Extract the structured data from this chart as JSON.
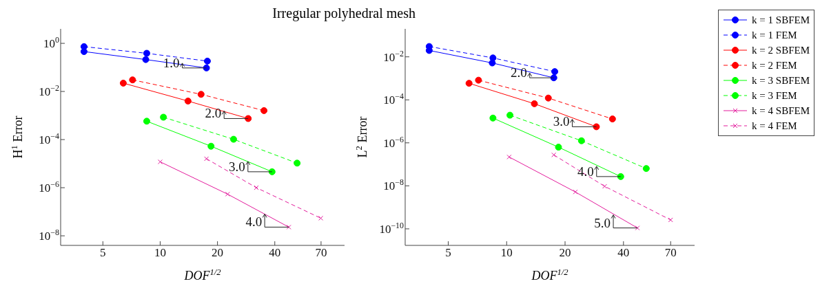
{
  "chart_data": [
    {
      "type": "line",
      "title": "Irregular polyhedral mesh",
      "xlabel": "DOF$^{1/2}$",
      "ylabel": "H$^{1}$ Error",
      "log": "xy",
      "grid": false,
      "legend": false,
      "xlim": [
        3,
        93
      ],
      "xticks": [
        5,
        10,
        20,
        40,
        70
      ],
      "ylim": [
        4e-09,
        4
      ],
      "yticks": [
        {
          "value": 1,
          "label": "10$^{0}$"
        },
        {
          "value": 0.01,
          "label": "10$^{−2}$"
        },
        {
          "value": 0.0001,
          "label": "10$^{−4}$"
        },
        {
          "value": 1e-06,
          "label": "10$^{−6}$"
        },
        {
          "value": 1e-08,
          "label": "10$^{−8}$"
        }
      ],
      "series": [
        {
          "color": "#0000ff",
          "marker": "circle",
          "line_style": "solid",
          "x": [
            3.98,
            8.4,
            17.5
          ],
          "values": [
            0.456,
            0.212,
            0.095
          ]
        },
        {
          "color": "#0000ff",
          "marker": "circle",
          "line_style": "dashed",
          "x": [
            3.98,
            8.5,
            17.7
          ],
          "values": [
            0.73,
            0.386,
            0.183
          ]
        },
        {
          "color": "#ff0000",
          "marker": "circle",
          "line_style": "solid",
          "x": [
            6.4,
            14,
            29
          ],
          "values": [
            0.0222,
            0.004,
            0.00075
          ]
        },
        {
          "color": "#ff0000",
          "marker": "circle",
          "line_style": "dashed",
          "x": [
            7.16,
            16.4,
            35.1
          ],
          "values": [
            0.0303,
            0.0076,
            0.0016
          ]
        },
        {
          "color": "#00ff00",
          "marker": "circle",
          "line_style": "solid",
          "x": [
            8.5,
            18.5,
            38.7
          ],
          "values": [
            0.00058,
            5.3e-05,
            4.6e-06
          ]
        },
        {
          "color": "#00ff00",
          "marker": "circle",
          "line_style": "dashed",
          "x": [
            10.4,
            24.3,
            52.4
          ],
          "values": [
            0.00085,
            0.000103,
            1.05e-05
          ]
        },
        {
          "color": "#e31b9c",
          "marker": "cross",
          "line_style": "solid",
          "x": [
            10,
            22.6,
            47.4
          ],
          "values": [
            1.19e-05,
            5.4e-07,
            2.3e-08
          ]
        },
        {
          "color": "#e31b9c",
          "marker": "cross",
          "line_style": "dashed",
          "x": [
            17.5,
            32,
            69.8
          ],
          "values": [
            1.6e-05,
            1e-06,
            5.4e-08
          ]
        }
      ],
      "annotations": [
        {
          "text": "1.0",
          "x": 17.5,
          "y": 0.095
        },
        {
          "text": "2.0",
          "x": 29,
          "y": 0.00075
        },
        {
          "text": "3.0",
          "x": 38.7,
          "y": 4.6e-06
        },
        {
          "text": "4.0",
          "x": 47.4,
          "y": 2.3e-08
        }
      ]
    },
    {
      "type": "line",
      "xlabel": "DOF$^{1/2}$",
      "ylabel": "L$^{2}$ Error",
      "log": "xy",
      "grid": false,
      "legend": "right",
      "xlim": [
        3,
        93
      ],
      "xticks": [
        5,
        10,
        20,
        40,
        70
      ],
      "ylim": [
        1.7e-11,
        0.2
      ],
      "yticks": [
        {
          "value": 0.01,
          "label": "10$^{−2}$"
        },
        {
          "value": 0.0001,
          "label": "10$^{−4}$"
        },
        {
          "value": 1e-06,
          "label": "10$^{−6}$"
        },
        {
          "value": 1e-08,
          "label": "10$^{−8}$"
        },
        {
          "value": 1e-10,
          "label": "10$^{−10}$"
        }
      ],
      "series": [
        {
          "name": "k = 1 SBFEM",
          "color": "#0000ff",
          "marker": "circle",
          "line_style": "solid",
          "x": [
            3.99,
            8.43,
            17.5
          ],
          "values": [
            0.0198,
            0.0052,
            0.00106
          ]
        },
        {
          "name": "k = 1 FEM",
          "color": "#0000ff",
          "marker": "circle",
          "line_style": "dashed",
          "x": [
            3.99,
            8.5,
            17.7
          ],
          "values": [
            0.0303,
            0.0089,
            0.00206
          ]
        },
        {
          "name": "k = 2 SBFEM",
          "color": "#ff0000",
          "marker": "circle",
          "line_style": "solid",
          "x": [
            6.4,
            13.9,
            29
          ],
          "values": [
            0.00059,
            6.6e-05,
            5.6e-06
          ]
        },
        {
          "name": "k = 2 FEM",
          "color": "#ff0000",
          "marker": "circle",
          "line_style": "dashed",
          "x": [
            7.16,
            16.4,
            35.1
          ],
          "values": [
            0.00082,
            0.000121,
            1.29e-05
          ]
        },
        {
          "name": "k = 3 SBFEM",
          "color": "#00ff00",
          "marker": "circle",
          "line_style": "solid",
          "x": [
            8.5,
            18.5,
            38.7
          ],
          "values": [
            1.42e-05,
            6.3e-07,
            2.7e-08
          ]
        },
        {
          "name": "k = 3 FEM",
          "color": "#00ff00",
          "marker": "circle",
          "line_style": "dashed",
          "x": [
            10.4,
            24.3,
            52.4
          ],
          "values": [
            1.93e-05,
            1.25e-06,
            6.4e-08
          ]
        },
        {
          "name": "k = 4 SBFEM",
          "color": "#e31b9c",
          "marker": "cross",
          "line_style": "solid",
          "x": [
            10.3,
            22.6,
            47.2
          ],
          "values": [
            2.2e-07,
            5.2e-09,
            1.1e-10
          ]
        },
        {
          "name": "k = 4 FEM",
          "color": "#e31b9c",
          "marker": "cross",
          "line_style": "dashed",
          "x": [
            17.5,
            32,
            70
          ],
          "values": [
            2.75e-07,
            9.5e-09,
            2.6e-10
          ]
        }
      ],
      "annotations": [
        {
          "text": "2.0",
          "x": 17.5,
          "y": 0.00106
        },
        {
          "text": "3.0",
          "x": 29,
          "y": 5.6e-06
        },
        {
          "text": "4.0",
          "x": 38.7,
          "y": 2.7e-08
        },
        {
          "text": "5.0",
          "x": 47.2,
          "y": 1.1e-10
        }
      ]
    }
  ]
}
